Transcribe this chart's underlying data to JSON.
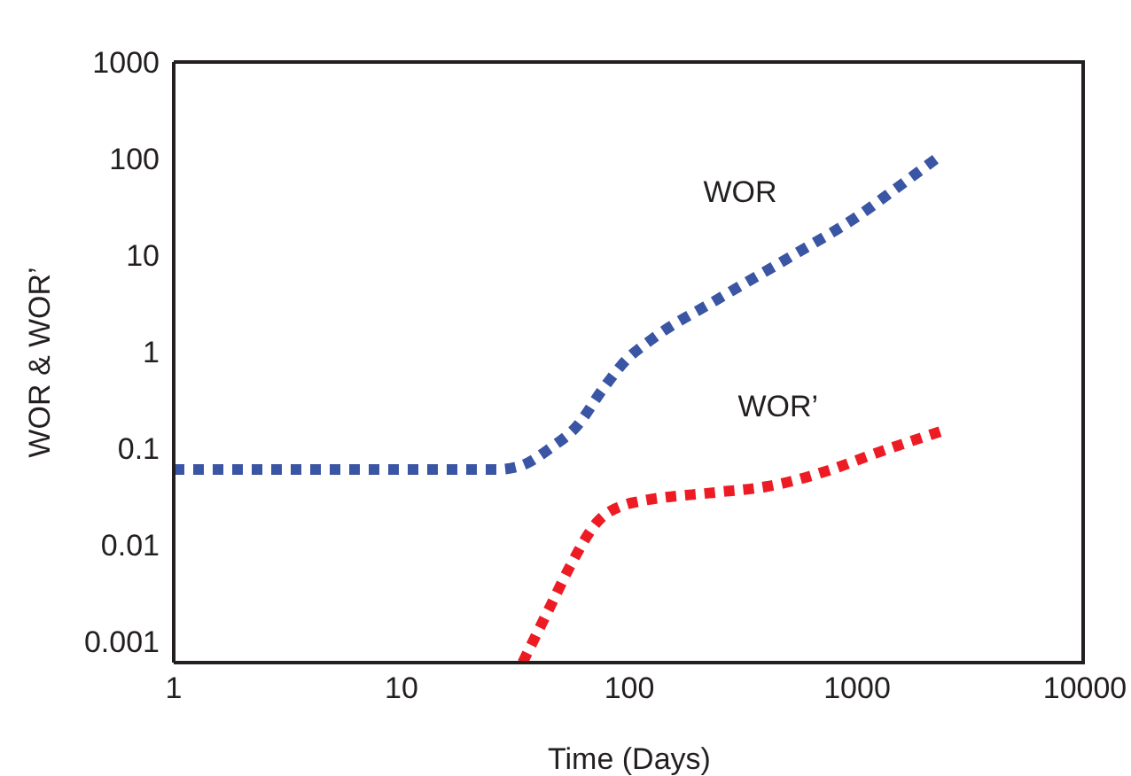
{
  "chart_data": {
    "type": "line",
    "xlabel": "Time (Days)",
    "ylabel": "WOR & WOR’",
    "log": "xy",
    "xlim": [
      1,
      10000
    ],
    "xticks": [
      1,
      10,
      100,
      1000,
      10000
    ],
    "ylim": [
      0.0006,
      1000
    ],
    "yticks": [
      0.001,
      0.01,
      0.1,
      1,
      10,
      100,
      1000
    ],
    "marker": "none",
    "line_style": "dotted",
    "series": [
      {
        "name": "WOR",
        "color": "#3a55a4",
        "x": [
          1,
          26,
          33,
          45,
          59,
          76,
          96,
          126,
          245,
          525,
          1000,
          1500,
          2350
        ],
        "values": [
          0.06,
          0.06,
          0.065,
          0.1,
          0.17,
          0.4,
          0.8,
          1.35,
          3.5,
          10,
          25,
          50,
          110
        ]
      },
      {
        "name": "WOR’",
        "color": "#ed1c24",
        "x": [
          34,
          45,
          55,
          72,
          96,
          110,
          245,
          400,
          770,
          1150,
          2350
        ],
        "values": [
          0.0006,
          0.0023,
          0.006,
          0.017,
          0.026,
          0.028,
          0.035,
          0.04,
          0.06,
          0.085,
          0.15
        ]
      }
    ]
  }
}
